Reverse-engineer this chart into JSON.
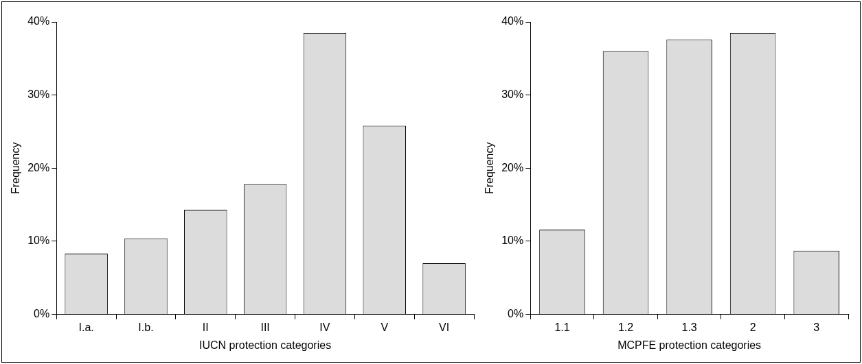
{
  "chart_data": [
    {
      "type": "bar",
      "categories": [
        "I.a.",
        "I.b.",
        "II",
        "III",
        "IV",
        "V",
        "VI"
      ],
      "values": [
        8.3,
        10.4,
        14.3,
        17.8,
        38.5,
        25.8,
        7.0
      ],
      "color": "#dcdcdc",
      "xlabel": "IUCN protection categories",
      "ylabel": "Frequency",
      "ylim": [
        0,
        40
      ],
      "yticks": [
        {
          "value": 0,
          "label": "0%"
        },
        {
          "value": 10,
          "label": "10%"
        },
        {
          "value": 20,
          "label": "20%"
        },
        {
          "value": 30,
          "label": "30%"
        },
        {
          "value": 40,
          "label": "40%"
        }
      ]
    },
    {
      "type": "bar",
      "categories": [
        "1.1",
        "1.2",
        "1.3",
        "2",
        "3"
      ],
      "values": [
        11.6,
        36.0,
        37.6,
        38.5,
        8.7
      ],
      "color": "#dcdcdc",
      "xlabel": "MCPFE protection categories",
      "ylabel": "Frequency",
      "ylim": [
        0,
        40
      ],
      "yticks": [
        {
          "value": 0,
          "label": "0%"
        },
        {
          "value": 10,
          "label": "10%"
        },
        {
          "value": 20,
          "label": "20%"
        },
        {
          "value": 30,
          "label": "30%"
        },
        {
          "value": 40,
          "label": "40%"
        }
      ]
    }
  ]
}
